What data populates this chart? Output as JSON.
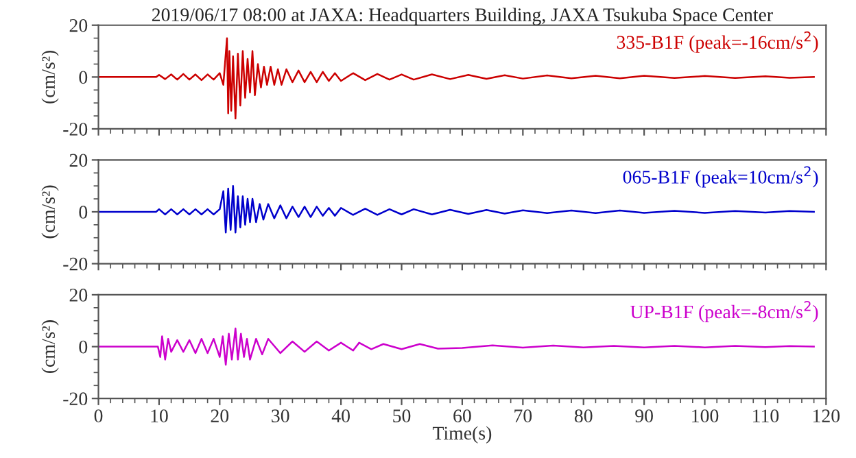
{
  "chart_data": [
    {
      "type": "line",
      "title": "2019/06/17 08:00 at JAXA: Headquarters Building, JAXA Tsukuba Space Center",
      "ylabel": "(cm/s²)",
      "xlim": [
        0,
        120
      ],
      "xticks": [
        0,
        10,
        20,
        30,
        40,
        50,
        60,
        70,
        80,
        90,
        100,
        110,
        120
      ],
      "ylim": [
        -20,
        20
      ],
      "yticks": [
        -20,
        0,
        20
      ],
      "tick_labels": "y",
      "series": [
        {
          "name": "335-B1F (peak=-16cm/s$^{2}$)",
          "color": "#cc0000",
          "x": [
            0,
            9.5,
            10,
            11,
            12,
            13,
            14,
            15,
            16,
            17,
            18,
            19,
            20,
            20.6,
            21.2,
            21.4,
            21.6,
            21.9,
            22.2,
            22.6,
            23.0,
            23.4,
            23.8,
            24.2,
            24.6,
            25.0,
            25.4,
            25.8,
            26.3,
            26.8,
            27.3,
            27.8,
            28.4,
            29.0,
            29.6,
            30.2,
            31,
            32,
            33,
            34,
            35,
            36,
            37,
            38,
            39,
            40,
            42,
            44,
            46,
            48,
            50,
            52,
            55,
            58,
            61,
            64,
            67,
            70,
            74,
            78,
            82,
            86,
            90,
            95,
            100,
            105,
            110,
            114,
            118
          ],
          "values": [
            0,
            0,
            0.8,
            -0.8,
            1,
            -1,
            1.2,
            -1,
            1,
            -1.2,
            1,
            -1,
            1.5,
            -3,
            15,
            -14,
            10,
            -13,
            8,
            -16,
            9,
            -11,
            10,
            -8,
            7,
            -6,
            10,
            -7,
            5,
            -4,
            4,
            -3,
            4,
            -3,
            3,
            -3,
            3,
            -2,
            2.5,
            -2,
            2,
            -2,
            2,
            -1.5,
            1.5,
            -1.5,
            1.5,
            -1.2,
            1.2,
            -1,
            1,
            -1,
            1,
            -0.8,
            0.8,
            -0.7,
            0.7,
            -0.6,
            0.6,
            -0.5,
            0.5,
            -0.5,
            0.5,
            -0.4,
            0.4,
            -0.4,
            0.3,
            -0.3,
            0
          ]
        }
      ]
    },
    {
      "type": "line",
      "ylabel": "(cm/s²)",
      "xlim": [
        0,
        120
      ],
      "xticks": [
        0,
        10,
        20,
        30,
        40,
        50,
        60,
        70,
        80,
        90,
        100,
        110,
        120
      ],
      "ylim": [
        -20,
        20
      ],
      "yticks": [
        -20,
        0,
        20
      ],
      "tick_labels": "y",
      "series": [
        {
          "name": "065-B1F (peak=10cm/s$^{2}$)",
          "color": "#0000cc",
          "x": [
            0,
            9.5,
            10,
            11,
            12,
            13,
            14,
            15,
            16,
            17,
            18,
            19,
            20,
            20.6,
            21.0,
            21.4,
            21.8,
            22.2,
            22.6,
            23.0,
            23.4,
            23.8,
            24.2,
            24.6,
            25.0,
            25.4,
            26.0,
            26.6,
            27.2,
            28,
            29,
            30,
            31,
            32,
            33,
            34,
            35,
            36,
            37,
            38,
            39,
            40,
            42,
            44,
            46,
            48,
            50,
            52,
            55,
            58,
            61,
            64,
            67,
            70,
            74,
            78,
            82,
            86,
            90,
            95,
            100,
            105,
            110,
            114,
            118
          ],
          "values": [
            0,
            0,
            1,
            -1,
            1,
            -1,
            1,
            -1,
            1,
            -1,
            1,
            -1,
            1,
            8,
            -8,
            9,
            -7,
            10,
            -8,
            6,
            -6,
            6,
            -5,
            5,
            -4,
            5,
            -4,
            3,
            -3,
            3,
            -2.5,
            2.5,
            -2.5,
            2,
            -2,
            2,
            -2,
            2,
            -1.5,
            1.5,
            -1.5,
            1.5,
            -1.2,
            1.2,
            -1.2,
            1,
            -1,
            1,
            -1,
            0.8,
            -0.8,
            0.7,
            -0.7,
            0.6,
            -0.5,
            0.5,
            -0.5,
            0.5,
            -0.4,
            0.4,
            -0.4,
            0.3,
            -0.3,
            0.3,
            0
          ]
        }
      ]
    },
    {
      "type": "line",
      "ylabel": "(cm/s²)",
      "xlabel": "Time(s)",
      "xlim": [
        0,
        120
      ],
      "xticks": [
        0,
        10,
        20,
        30,
        40,
        50,
        60,
        70,
        80,
        90,
        100,
        110,
        120
      ],
      "ylim": [
        -20,
        20
      ],
      "yticks": [
        -20,
        0,
        20
      ],
      "series": [
        {
          "name": "UP-B1F (peak=-8cm/s$^{2}$)",
          "color": "#cc00cc",
          "x": [
            0,
            9.8,
            10.2,
            10.5,
            11,
            11.5,
            12,
            13,
            14,
            15,
            16,
            17,
            18,
            19,
            20,
            20.5,
            21,
            21.5,
            22,
            22.6,
            23,
            23.5,
            24,
            24.5,
            25,
            26,
            27,
            28,
            30,
            32,
            34,
            36,
            38,
            40,
            42,
            43,
            45,
            47,
            50,
            53,
            56,
            60,
            65,
            70,
            75,
            80,
            85,
            90,
            95,
            100,
            105,
            110,
            114,
            118
          ],
          "values": [
            0,
            0,
            -4,
            4,
            -5,
            3,
            -2,
            2.5,
            -2,
            2.5,
            -2.5,
            3,
            -2.5,
            3,
            -4,
            4,
            -7,
            5,
            -5,
            7,
            -5,
            5,
            -4,
            3,
            -5,
            3,
            -3,
            3,
            -2.5,
            2,
            -2,
            2,
            -1.5,
            1.5,
            -1.5,
            1.5,
            -1,
            1,
            -1,
            1,
            -0.8,
            -0.5,
            0.5,
            -0.4,
            0.4,
            -0.3,
            0.3,
            -0.3,
            0.3,
            -0.3,
            0.3,
            -0.2,
            0.2,
            0
          ]
        }
      ]
    }
  ]
}
